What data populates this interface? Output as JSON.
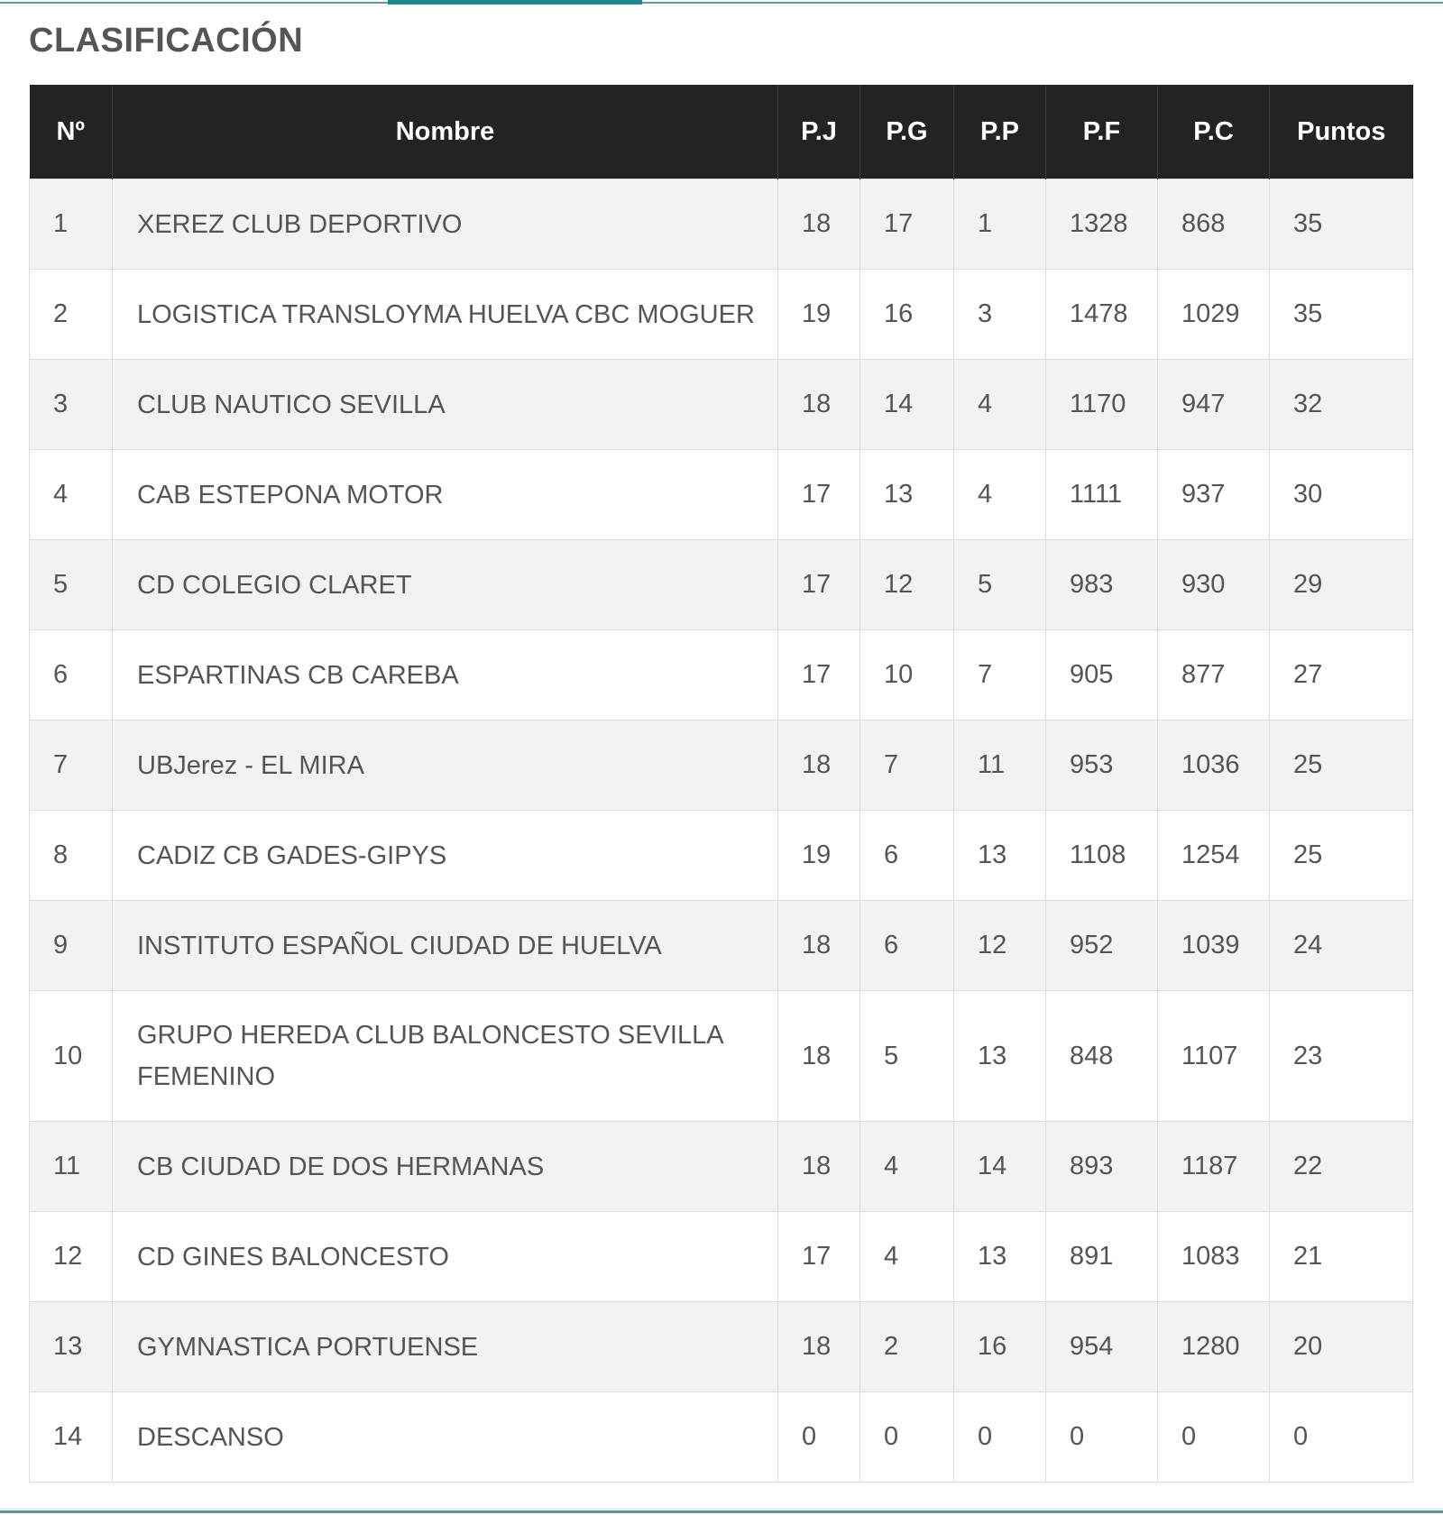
{
  "page": {
    "title": "CLASIFICACIÓN"
  },
  "table": {
    "headers": {
      "no": "Nº",
      "name": "Nombre",
      "pj": "P.J",
      "pg": "P.G",
      "pp": "P.P",
      "pf": "P.F",
      "pc": "P.C",
      "points": "Puntos"
    },
    "rows": [
      {
        "no": "1",
        "name": "XEREZ CLUB DEPORTIVO",
        "pj": "18",
        "pg": "17",
        "pp": "1",
        "pf": "1328",
        "pc": "868",
        "points": "35"
      },
      {
        "no": "2",
        "name": "LOGISTICA TRANSLOYMA HUELVA CBC MOGUER",
        "pj": "19",
        "pg": "16",
        "pp": "3",
        "pf": "1478",
        "pc": "1029",
        "points": "35"
      },
      {
        "no": "3",
        "name": "CLUB NAUTICO SEVILLA",
        "pj": "18",
        "pg": "14",
        "pp": "4",
        "pf": "1170",
        "pc": "947",
        "points": "32"
      },
      {
        "no": "4",
        "name": "CAB ESTEPONA MOTOR",
        "pj": "17",
        "pg": "13",
        "pp": "4",
        "pf": "1111",
        "pc": "937",
        "points": "30"
      },
      {
        "no": "5",
        "name": "CD COLEGIO CLARET",
        "pj": "17",
        "pg": "12",
        "pp": "5",
        "pf": "983",
        "pc": "930",
        "points": "29"
      },
      {
        "no": "6",
        "name": "ESPARTINAS CB CAREBA",
        "pj": "17",
        "pg": "10",
        "pp": "7",
        "pf": "905",
        "pc": "877",
        "points": "27"
      },
      {
        "no": "7",
        "name": "UBJerez - EL MIRA",
        "pj": "18",
        "pg": "7",
        "pp": "11",
        "pf": "953",
        "pc": "1036",
        "points": "25"
      },
      {
        "no": "8",
        "name": "CADIZ CB GADES-GIPYS",
        "pj": "19",
        "pg": "6",
        "pp": "13",
        "pf": "1108",
        "pc": "1254",
        "points": "25"
      },
      {
        "no": "9",
        "name": "INSTITUTO ESPAÑOL CIUDAD DE HUELVA",
        "pj": "18",
        "pg": "6",
        "pp": "12",
        "pf": "952",
        "pc": "1039",
        "points": "24"
      },
      {
        "no": "10",
        "name": "GRUPO HEREDA CLUB BALONCESTO SEVILLA FEMENINO",
        "pj": "18",
        "pg": "5",
        "pp": "13",
        "pf": "848",
        "pc": "1107",
        "points": "23"
      },
      {
        "no": "11",
        "name": "CB CIUDAD DE DOS HERMANAS",
        "pj": "18",
        "pg": "4",
        "pp": "14",
        "pf": "893",
        "pc": "1187",
        "points": "22"
      },
      {
        "no": "12",
        "name": "CD GINES BALONCESTO",
        "pj": "17",
        "pg": "4",
        "pp": "13",
        "pf": "891",
        "pc": "1083",
        "points": "21"
      },
      {
        "no": "13",
        "name": "GYMNASTICA PORTUENSE",
        "pj": "18",
        "pg": "2",
        "pp": "16",
        "pf": "954",
        "pc": "1280",
        "points": "20"
      },
      {
        "no": "14",
        "name": "DESCANSO",
        "pj": "0",
        "pg": "0",
        "pp": "0",
        "pf": "0",
        "pc": "0",
        "points": "0"
      }
    ]
  },
  "colors": {
    "header_bg": "#212327",
    "header_text": "#ffffff",
    "row_odd": "#f2f2f2",
    "row_even": "#ffffff",
    "cell_text": "#555555",
    "accent": "#1a8a8f"
  }
}
